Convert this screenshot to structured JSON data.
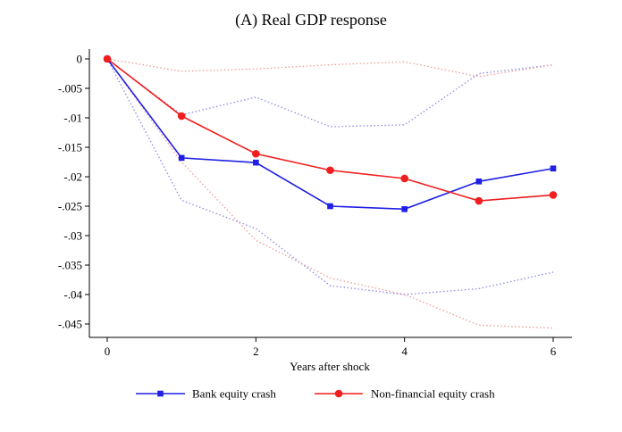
{
  "chart_data": {
    "type": "line",
    "title": "(A) Real GDP response",
    "xlabel": "Years after shock",
    "ylabel": "",
    "xlim": [
      0,
      6
    ],
    "ylim": [
      -0.046,
      0.001
    ],
    "x": [
      0,
      1,
      2,
      3,
      4,
      5,
      6
    ],
    "xticks": [
      0,
      2,
      4,
      6
    ],
    "xtick_labels": [
      "0",
      "2",
      "4",
      "6"
    ],
    "yticks": [
      0,
      -0.005,
      -0.01,
      -0.015,
      -0.02,
      -0.025,
      -0.03,
      -0.035,
      -0.04,
      -0.045
    ],
    "ytick_labels": [
      "0",
      "-.005",
      "-.01",
      "-.015",
      "-.02",
      "-.025",
      "-.03",
      "-.035",
      "-.04",
      "-.045"
    ],
    "grid": false,
    "legend_position": "bottom",
    "series": [
      {
        "name": "Bank equity crash",
        "color": "#1f1fe6",
        "marker": "square",
        "values": [
          0,
          -0.0168,
          -0.0176,
          -0.025,
          -0.0255,
          -0.0208,
          -0.0186
        ],
        "ci_upper": [
          0,
          -0.0095,
          -0.0065,
          -0.0115,
          -0.0112,
          -0.0025,
          -0.001
        ],
        "ci_lower": [
          0,
          -0.024,
          -0.0288,
          -0.0385,
          -0.04,
          -0.039,
          -0.0362
        ]
      },
      {
        "name": "Non-financial equity crash",
        "color": "#f01e1e",
        "marker": "circle",
        "values": [
          0,
          -0.0097,
          -0.0161,
          -0.0189,
          -0.0203,
          -0.0241,
          -0.0231
        ],
        "ci_upper": [
          0,
          -0.0021,
          -0.0017,
          -0.001,
          -0.0005,
          -0.003,
          -0.001
        ],
        "ci_lower": [
          0,
          -0.0175,
          -0.0308,
          -0.0372,
          -0.04,
          -0.0452,
          -0.0457
        ]
      }
    ]
  }
}
